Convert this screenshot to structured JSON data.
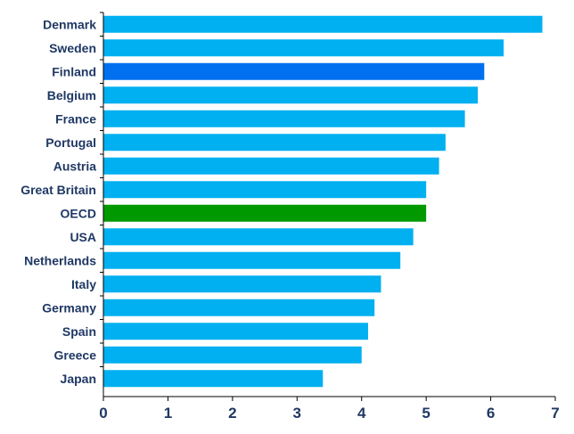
{
  "chart_data": {
    "type": "bar",
    "orientation": "horizontal",
    "categories": [
      "Denmark",
      "Sweden",
      "Finland",
      "Belgium",
      "France",
      "Portugal",
      "Austria",
      "Great Britain",
      "OECD",
      "USA",
      "Netherlands",
      "Italy",
      "Germany",
      "Spain",
      "Greece",
      "Japan"
    ],
    "values": [
      6.8,
      6.2,
      5.9,
      5.8,
      5.6,
      5.3,
      5.2,
      5.0,
      5.0,
      4.8,
      4.6,
      4.3,
      4.2,
      4.1,
      4.0,
      3.4
    ],
    "xlim": [
      0,
      7
    ],
    "xticks": [
      "0",
      "1",
      "2",
      "3",
      "4",
      "5",
      "6",
      "7"
    ],
    "grid": false,
    "colors": {
      "default": "#00b0f0",
      "highlight_finland": "#0070f0",
      "highlight_oecd": "#009900"
    },
    "highlights": {
      "Finland": "#0070f0",
      "OECD": "#009900"
    }
  }
}
